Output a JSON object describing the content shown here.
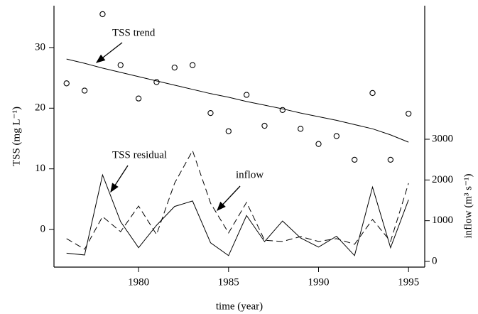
{
  "chart_data": {
    "type": "line",
    "xlabel": "time (year)",
    "ylabel": "TSS (mg L⁻¹)",
    "y2label": "inflow (m³ s⁻¹)",
    "annotations": [
      "TSS trend",
      "TSS residual",
      "inflow"
    ],
    "x": [
      1976,
      1977,
      1978,
      1979,
      1980,
      1981,
      1982,
      1983,
      1984,
      1985,
      1986,
      1987,
      1988,
      1989,
      1990,
      1991,
      1992,
      1993,
      1994,
      1995
    ],
    "xlim": [
      1975.3,
      1995.9
    ],
    "xticks": [
      1980,
      1985,
      1990,
      1995
    ],
    "ylim": [
      -6.2,
      36.9
    ],
    "yticks": [
      0,
      10,
      20,
      30
    ],
    "y2lim": [
      -140,
      6280
    ],
    "y2ticks": [
      0,
      1000,
      2000,
      3000
    ],
    "series": [
      {
        "mode": "markers",
        "color": "#000000",
        "values": [
          24.1,
          22.9,
          35.5,
          27.1,
          21.6,
          24.3,
          26.7,
          27.1,
          19.2,
          16.2,
          22.2,
          17.1,
          19.7,
          16.6,
          14.1,
          15.4,
          11.5,
          22.5,
          11.5,
          19.1
        ]
      },
      {
        "mode": "lines",
        "color": "#000000",
        "values": [
          28.1,
          27.4,
          26.6,
          25.9,
          25.2,
          24.5,
          23.8,
          23.1,
          22.4,
          21.8,
          21.1,
          20.5,
          19.9,
          19.2,
          18.6,
          18.0,
          17.3,
          16.6,
          15.6,
          14.4
        ]
      },
      {
        "mode": "lines",
        "color": "#000000",
        "values": [
          -3.9,
          -4.2,
          9.0,
          1.3,
          -3.0,
          0.7,
          3.8,
          4.7,
          -2.2,
          -4.3,
          2.3,
          -2.0,
          1.4,
          -1.4,
          -2.9,
          -1.1,
          -4.3,
          7.0,
          -3.0,
          4.9
        ]
      },
      {
        "mode": "lines",
        "dash": true,
        "axis": "y2",
        "color": "#000000",
        "values": [
          560,
          300,
          1100,
          730,
          1360,
          660,
          1920,
          2720,
          1430,
          700,
          1450,
          520,
          490,
          610,
          490,
          560,
          420,
          1030,
          490,
          1920
        ]
      }
    ]
  }
}
